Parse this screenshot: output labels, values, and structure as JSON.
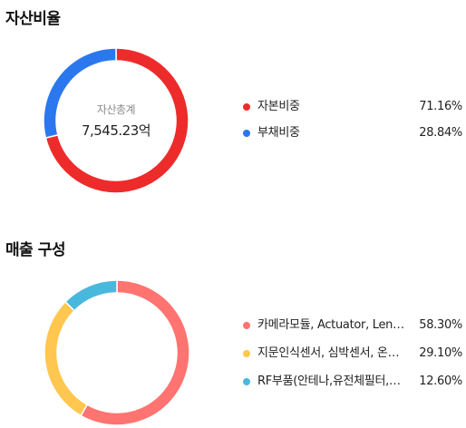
{
  "chart_data": [
    {
      "type": "pie",
      "title": "자산비율",
      "center": {
        "title": "자산총계",
        "value": "7,545.23억"
      },
      "slices": [
        {
          "label": "자본비중",
          "value": 71.16,
          "display": "71.16%",
          "color": "#ee2b2b"
        },
        {
          "label": "부채비중",
          "value": 28.84,
          "display": "28.84%",
          "color": "#2b78ee"
        }
      ]
    },
    {
      "type": "pie",
      "title": "매출 구성",
      "center": {
        "title": "",
        "value": ""
      },
      "slices": [
        {
          "label": "카메라모듈, Actuator, Len…",
          "value": 58.3,
          "display": "58.30%",
          "color": "#ff7370"
        },
        {
          "label": "지문인식센서, 심박센서, 온…",
          "value": 29.1,
          "display": "29.10%",
          "color": "#ffc74f"
        },
        {
          "label": "RF부품(안테나,유전체필터,…",
          "value": 12.6,
          "display": "12.60%",
          "color": "#49b8dd"
        }
      ]
    }
  ]
}
